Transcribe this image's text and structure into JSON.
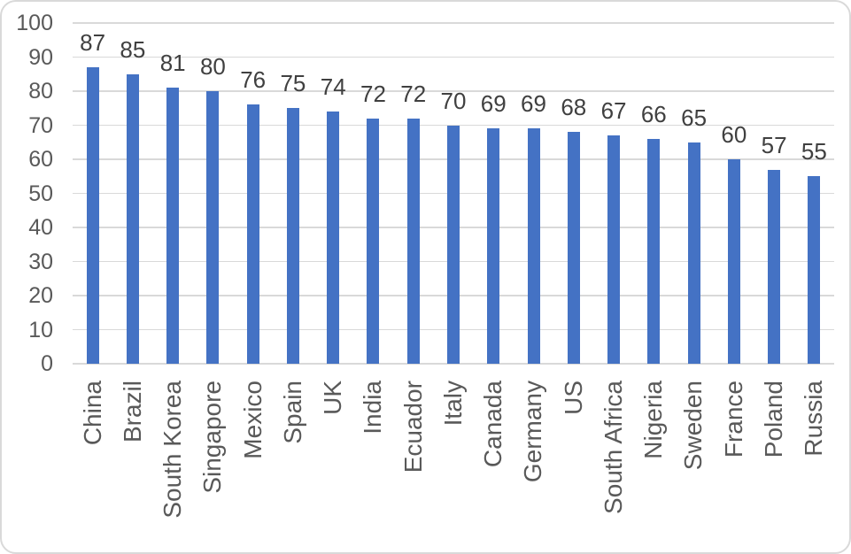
{
  "chart_data": {
    "type": "bar",
    "categories": [
      "China",
      "Brazil",
      "South Korea",
      "Singapore",
      "Mexico",
      "Spain",
      "UK",
      "India",
      "Ecuador",
      "Italy",
      "Canada",
      "Germany",
      "US",
      "South Africa",
      "Nigeria",
      "Sweden",
      "France",
      "Poland",
      "Russia"
    ],
    "values": [
      87,
      85,
      81,
      80,
      76,
      75,
      74,
      72,
      72,
      70,
      69,
      69,
      68,
      67,
      66,
      65,
      60,
      57,
      55
    ],
    "title": "",
    "xlabel": "",
    "ylabel": "",
    "ylim": [
      0,
      100
    ],
    "yticks": [
      0,
      10,
      20,
      30,
      40,
      50,
      60,
      70,
      80,
      90,
      100
    ],
    "grid": true,
    "legend": false,
    "data_labels": true,
    "colors": {
      "bar": "#4472C4",
      "gridline": "#D9D9D9",
      "value_label": "#404040",
      "axis_label": "#595959",
      "frame_border": "#D9D9D9",
      "background": "#FFFFFF"
    }
  }
}
